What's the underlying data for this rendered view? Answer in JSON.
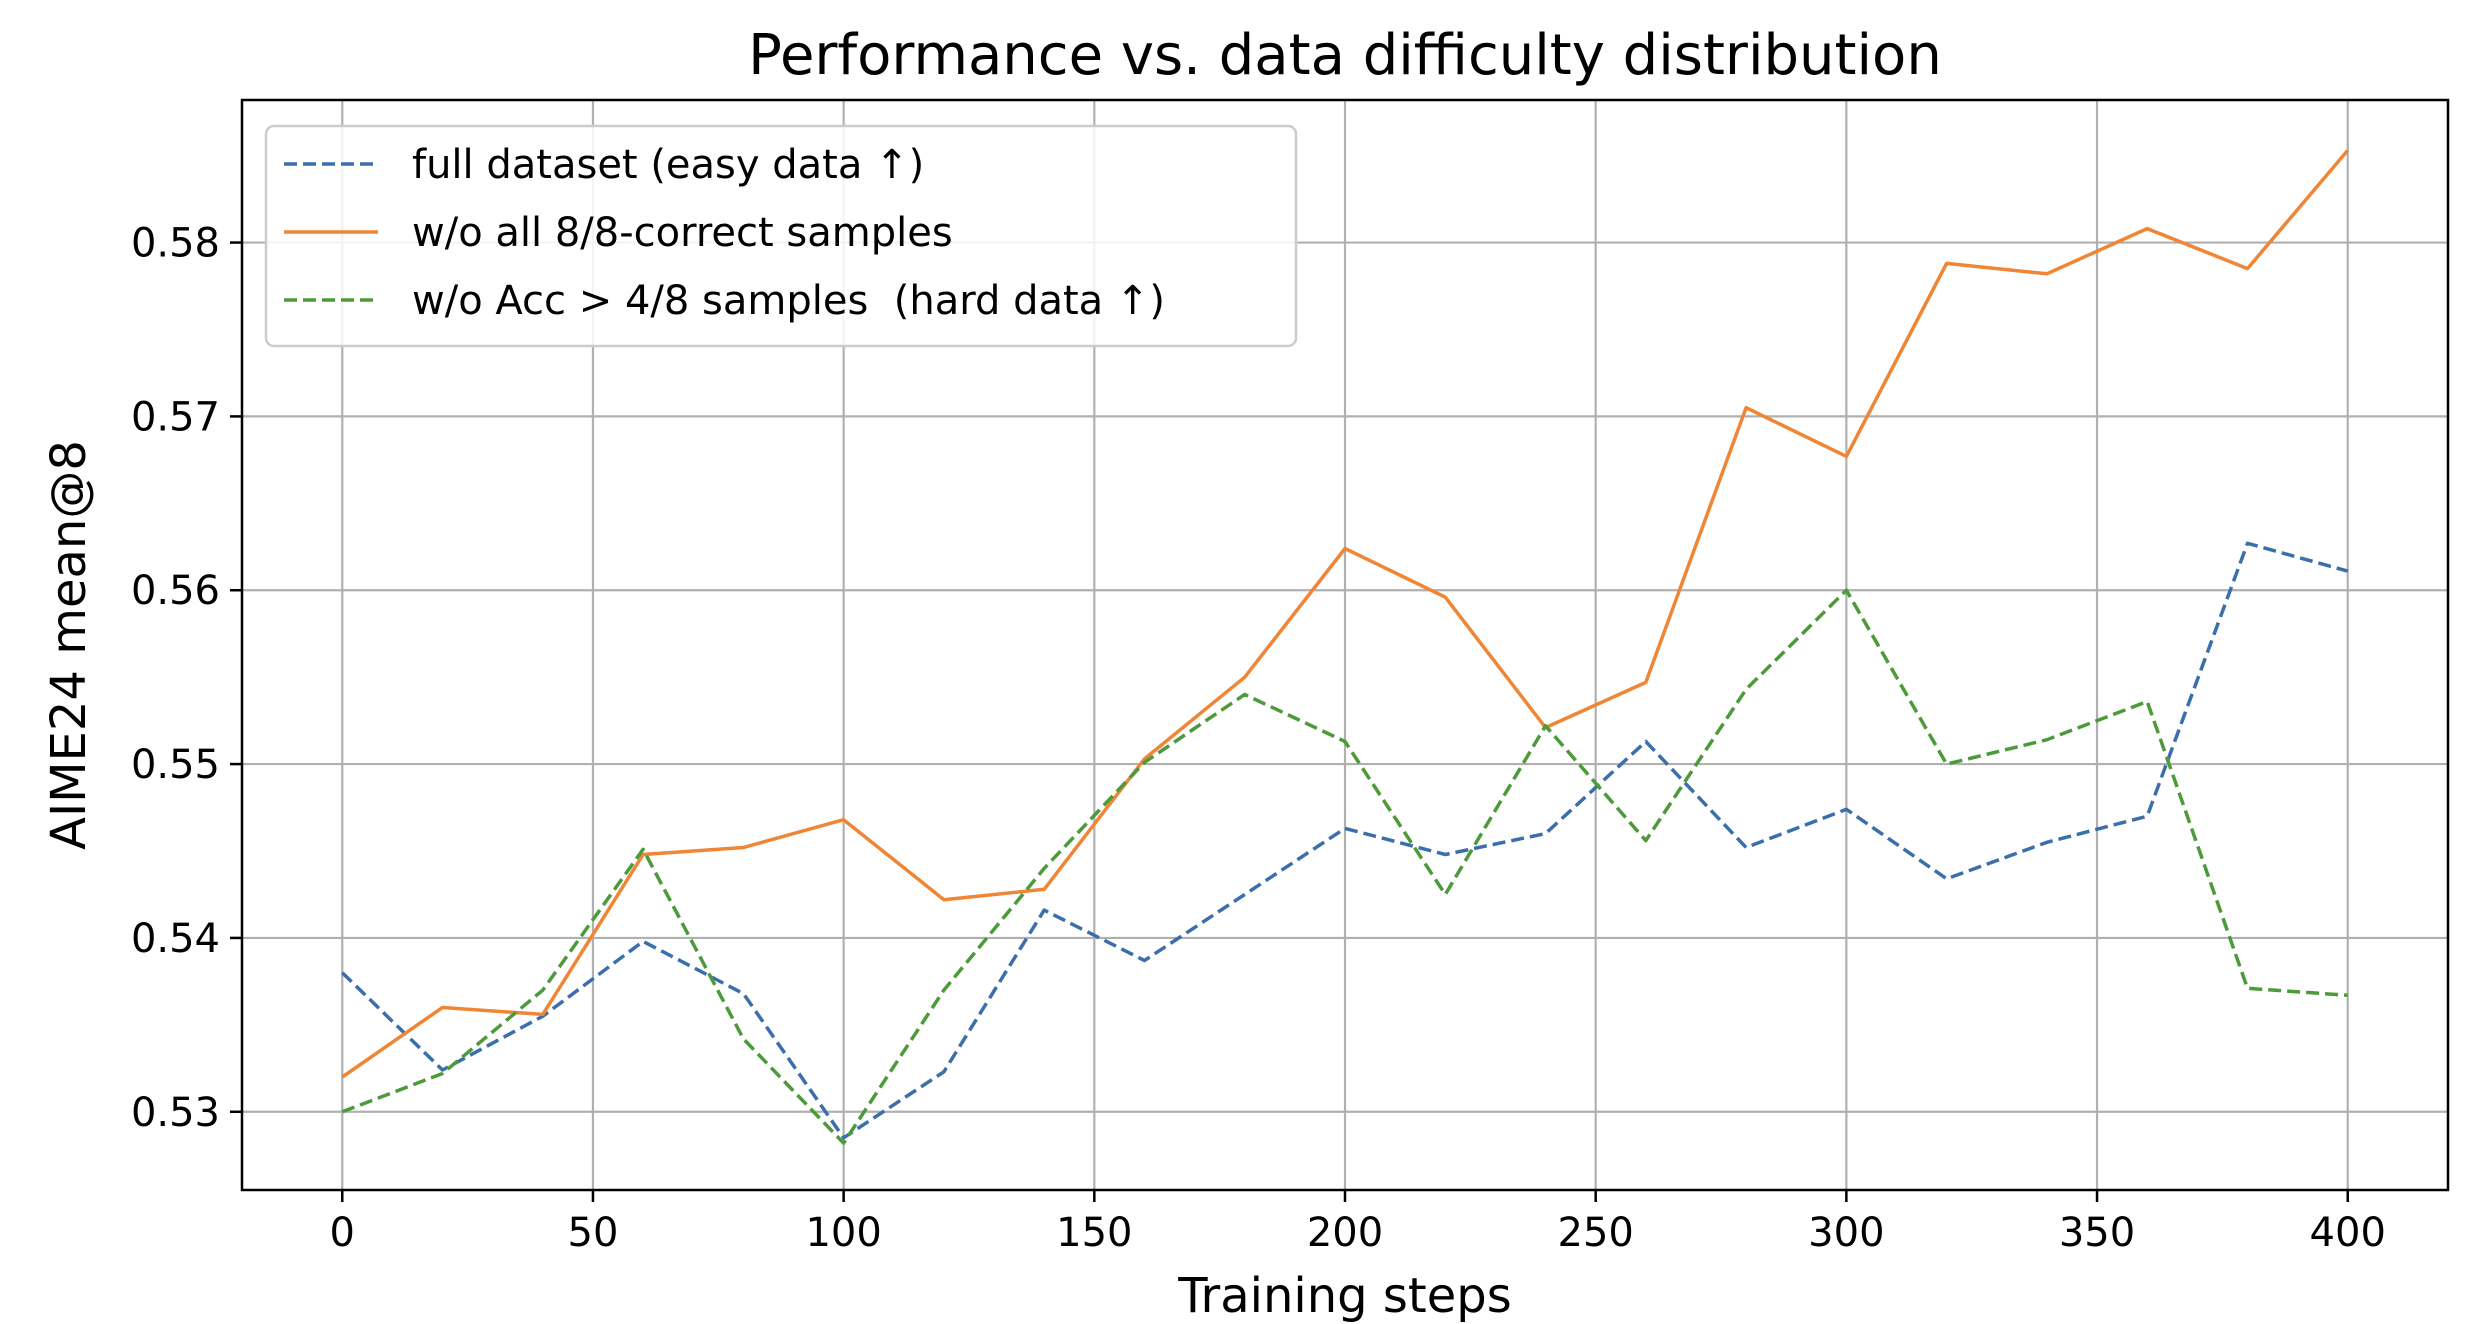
{
  "chart_data": {
    "type": "line",
    "title": "Performance vs. data difficulty distribution",
    "xlabel": "Training steps",
    "ylabel": "AIME24 mean@8",
    "xlim": [
      -20,
      420
    ],
    "ylim": [
      0.5255,
      0.5882
    ],
    "xticks": [
      0,
      50,
      100,
      150,
      200,
      250,
      300,
      350,
      400
    ],
    "xtick_labels": [
      "0",
      "50",
      "100",
      "150",
      "200",
      "250",
      "300",
      "350",
      "400"
    ],
    "yticks": [
      0.53,
      0.54,
      0.55,
      0.56,
      0.57,
      0.58
    ],
    "ytick_labels": [
      "0.53",
      "0.54",
      "0.55",
      "0.56",
      "0.57",
      "0.58"
    ],
    "grid": true,
    "legend_position": "top-left",
    "x": [
      0,
      20,
      40,
      60,
      80,
      100,
      120,
      140,
      160,
      180,
      200,
      220,
      240,
      260,
      280,
      300,
      320,
      340,
      360,
      380,
      400
    ],
    "series": [
      {
        "name": "full dataset (easy data ↑)",
        "color": "#3a6fac",
        "dash": "dashed",
        "values": [
          0.538,
          0.5324,
          0.5355,
          0.5398,
          0.5368,
          0.5285,
          0.5323,
          0.5416,
          0.5387,
          0.5425,
          0.5463,
          0.5448,
          0.546,
          0.5513,
          0.5452,
          0.5474,
          0.5434,
          0.5455,
          0.547,
          0.5627,
          0.5611
        ]
      },
      {
        "name": "w/o all 8/8-correct samples",
        "color": "#ef8636",
        "dash": "solid",
        "values": [
          0.532,
          0.536,
          0.5356,
          0.5448,
          0.5452,
          0.5468,
          0.5422,
          0.5428,
          0.5503,
          0.555,
          0.5624,
          0.5596,
          0.5521,
          0.5547,
          0.5705,
          0.5677,
          0.5788,
          0.5782,
          0.5808,
          0.5785,
          0.5853
        ]
      },
      {
        "name": "w/o Acc > 4/8 samples  (hard data ↑)",
        "color": "#4c9a3a",
        "dash": "dashed",
        "values": [
          0.53,
          0.5322,
          0.537,
          0.5451,
          0.5342,
          0.5282,
          0.537,
          0.544,
          0.5501,
          0.554,
          0.5513,
          0.5425,
          0.5522,
          0.5456,
          0.5543,
          0.56,
          0.55,
          0.5514,
          0.5536,
          0.5371,
          0.5367
        ]
      }
    ]
  }
}
